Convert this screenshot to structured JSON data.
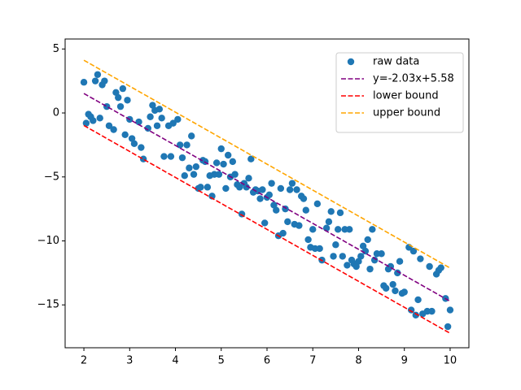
{
  "chart_data": {
    "type": "scatter",
    "xlim": [
      1.59,
      10.41
    ],
    "xticks": [
      2,
      3,
      4,
      5,
      6,
      7,
      8,
      9,
      10
    ],
    "ylim": [
      -18.35,
      5.78
    ],
    "yticks": [
      {
        "value": 5,
        "label": "5"
      },
      {
        "value": 0,
        "label": "0"
      },
      {
        "value": -5,
        "label": "−5"
      },
      {
        "value": -10,
        "label": "−10"
      },
      {
        "value": -15,
        "label": "−15"
      }
    ],
    "legend": "upper right",
    "series": [
      {
        "name": "raw data",
        "type": "scatter",
        "color": "#1f77b4",
        "x": [
          2.0,
          2.05,
          2.1,
          2.15,
          2.2,
          2.25,
          2.3,
          2.35,
          2.4,
          2.45,
          2.5,
          2.55,
          2.65,
          2.7,
          2.75,
          2.8,
          2.85,
          2.9,
          2.95,
          3.0,
          3.05,
          3.1,
          3.2,
          3.25,
          3.3,
          3.4,
          3.45,
          3.5,
          3.55,
          3.6,
          3.65,
          3.7,
          3.75,
          3.85,
          3.9,
          3.95,
          4.05,
          4.1,
          4.15,
          4.2,
          4.25,
          4.3,
          4.35,
          4.4,
          4.45,
          4.5,
          4.55,
          4.6,
          4.65,
          4.7,
          4.75,
          4.8,
          4.85,
          4.9,
          4.95,
          5.0,
          5.05,
          5.1,
          5.15,
          5.2,
          5.25,
          5.3,
          5.35,
          5.4,
          5.45,
          5.5,
          5.55,
          5.6,
          5.65,
          5.7,
          5.75,
          5.8,
          5.85,
          5.9,
          5.95,
          6.0,
          6.05,
          6.1,
          6.15,
          6.2,
          6.25,
          6.3,
          6.35,
          6.4,
          6.45,
          6.5,
          6.55,
          6.6,
          6.65,
          6.7,
          6.75,
          6.8,
          6.85,
          6.9,
          6.95,
          7.0,
          7.05,
          7.1,
          7.15,
          7.2,
          7.3,
          7.35,
          7.4,
          7.45,
          7.5,
          7.55,
          7.6,
          7.65,
          7.7,
          7.75,
          7.8,
          7.85,
          7.9,
          7.95,
          8.0,
          8.05,
          8.1,
          8.15,
          8.2,
          8.25,
          8.3,
          8.35,
          8.4,
          8.5,
          8.55,
          8.6,
          8.65,
          8.7,
          8.75,
          8.8,
          8.85,
          8.9,
          8.95,
          9.0,
          9.1,
          9.15,
          9.2,
          9.25,
          9.3,
          9.35,
          9.4,
          9.5,
          9.55,
          9.6,
          9.7,
          9.75,
          9.8,
          9.9,
          9.95,
          10.0
        ],
        "values": [
          2.4,
          -0.8,
          -0.1,
          -0.3,
          -0.6,
          2.5,
          3.0,
          -0.4,
          2.2,
          2.5,
          0.5,
          -1.0,
          -1.3,
          1.6,
          1.2,
          0.5,
          1.9,
          -1.7,
          1.0,
          -0.5,
          -2.0,
          -2.4,
          -0.7,
          -2.7,
          -3.6,
          -1.2,
          -0.3,
          0.6,
          0.2,
          -1.0,
          0.3,
          -0.4,
          -3.4,
          -1.0,
          -3.4,
          -0.8,
          -0.5,
          -2.5,
          -3.5,
          -4.9,
          -2.5,
          -4.3,
          -1.8,
          -4.8,
          -4.2,
          -5.9,
          -5.8,
          -3.7,
          -3.8,
          -5.8,
          -4.9,
          -6.5,
          -4.8,
          -3.9,
          -4.8,
          -2.8,
          -4.0,
          -5.9,
          -3.3,
          -5.0,
          -3.8,
          -4.8,
          -5.6,
          -5.8,
          -7.9,
          -5.5,
          -5.8,
          -5.1,
          -3.6,
          -6.2,
          -6.0,
          -6.1,
          -6.7,
          -6.0,
          -8.6,
          -6.6,
          -6.4,
          -5.5,
          -7.2,
          -7.6,
          -9.6,
          -5.9,
          -9.4,
          -7.5,
          -8.5,
          -6.0,
          -5.5,
          -8.7,
          -6.0,
          -8.8,
          -6.5,
          -6.7,
          -7.6,
          -9.9,
          -10.5,
          -9.1,
          -10.6,
          -7.1,
          -10.6,
          -11.5,
          -9.0,
          -8.5,
          -7.7,
          -11.2,
          -10.3,
          -9.1,
          -7.8,
          -11.2,
          -9.1,
          -11.9,
          -9.1,
          -11.5,
          -11.8,
          -12.0,
          -11.6,
          -11.2,
          -10.4,
          -10.8,
          -9.9,
          -12.2,
          -9.1,
          -11.5,
          -11.0,
          -11.0,
          -13.5,
          -13.7,
          -12.2,
          -12.0,
          -13.4,
          -13.9,
          -12.5,
          -11.6,
          -14.1,
          -14.0,
          -10.5,
          -15.4,
          -10.8,
          -15.8,
          -14.6,
          -11.4,
          -15.7,
          -15.5,
          -12.0,
          -15.5,
          -12.6,
          -12.3,
          -12.1,
          -14.5,
          -16.7,
          -15.4
        ]
      },
      {
        "name": "y=-2.03x+5.58",
        "type": "line",
        "color": "#800080",
        "x": [
          2,
          10
        ],
        "values": [
          1.52,
          -14.72
        ]
      },
      {
        "name": "lower bound",
        "type": "line",
        "color": "#ff0000",
        "x": [
          2,
          10
        ],
        "values": [
          -0.98,
          -17.22
        ]
      },
      {
        "name": "upper bound",
        "type": "line",
        "color": "#ffa500",
        "x": [
          2,
          10
        ],
        "values": [
          4.12,
          -12.12
        ]
      }
    ]
  }
}
